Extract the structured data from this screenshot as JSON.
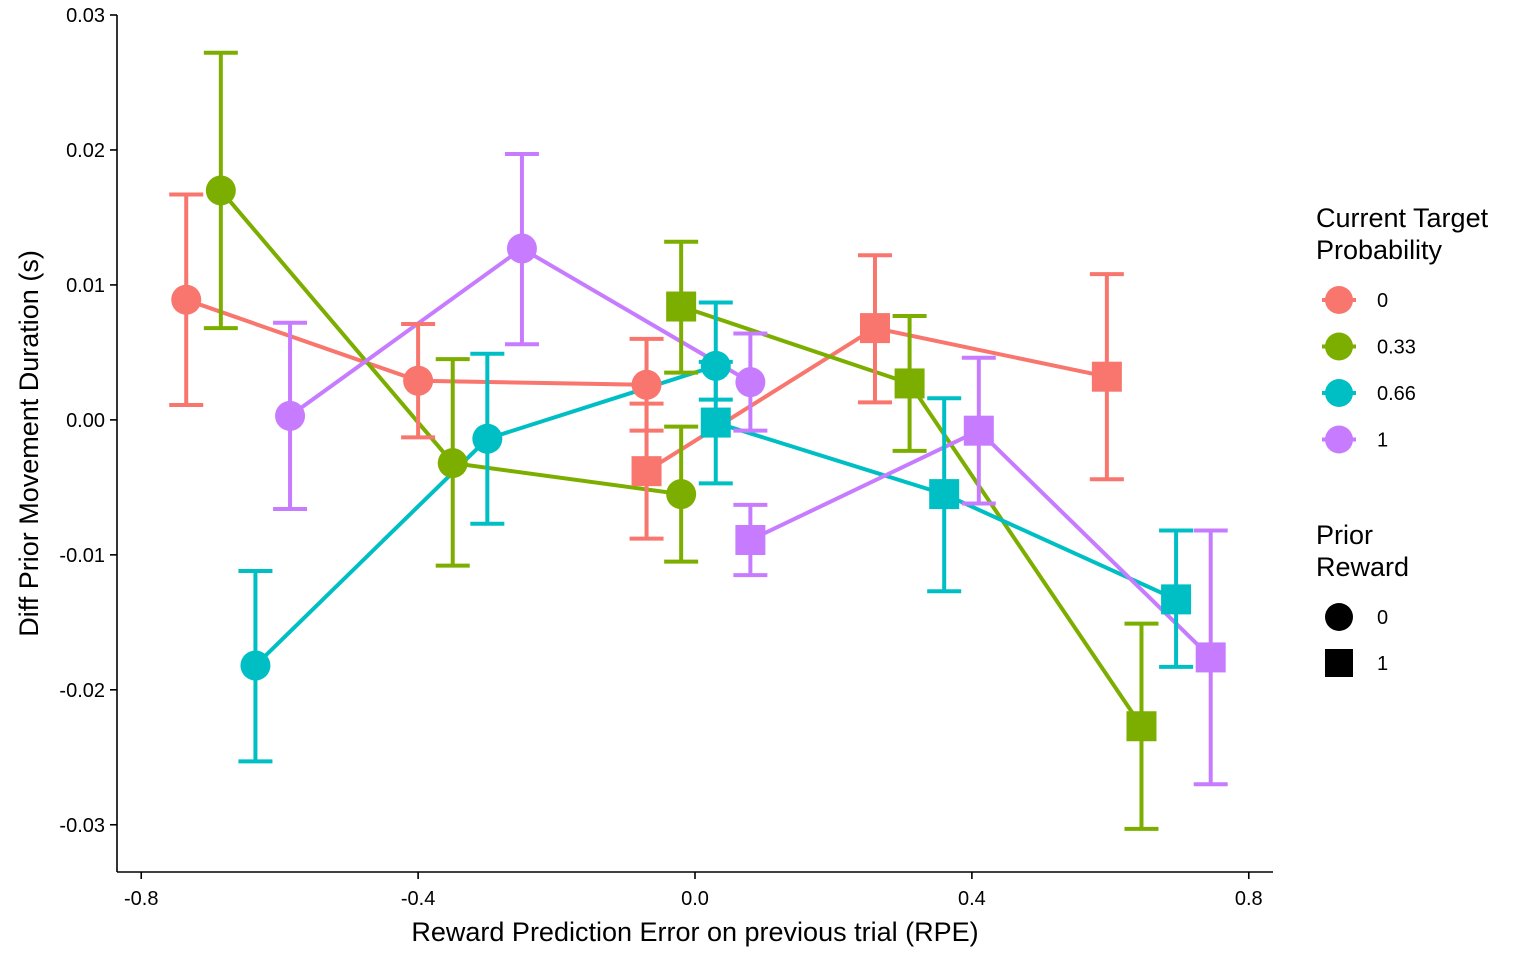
{
  "chart_data": {
    "type": "line",
    "title": "",
    "xlabel": "Reward Prediction Error on previous trial (RPE)",
    "ylabel": "Diff Prior Movement Duration (s)",
    "xlim": [
      -0.835,
      0.835
    ],
    "ylim": [
      -0.0335,
      0.03
    ],
    "x_ticks": [
      -0.8,
      -0.4,
      0.0,
      0.4,
      0.8
    ],
    "x_tick_labels": [
      "-0.8",
      "-0.4",
      "0.0",
      "0.4",
      "0.8"
    ],
    "y_ticks": [
      -0.03,
      -0.02,
      -0.01,
      0.0,
      0.01,
      0.02,
      0.03
    ],
    "y_tick_labels": [
      "-0.03",
      "-0.02",
      "-0.01",
      "0.00",
      "0.01",
      "0.02",
      "0.03"
    ],
    "grid": false,
    "legend_position": "right",
    "legend_color": {
      "title": [
        "Current Target",
        "Probability"
      ],
      "entries": [
        {
          "label": "0",
          "color": "#F8766D"
        },
        {
          "label": "0.33",
          "color": "#7CAE00"
        },
        {
          "label": "0.66",
          "color": "#00BFC4"
        },
        {
          "label": "1",
          "color": "#C77CFF"
        }
      ]
    },
    "legend_shape": {
      "title": [
        "Prior",
        "Reward"
      ],
      "entries": [
        {
          "label": "0",
          "shape": "circle"
        },
        {
          "label": "1",
          "shape": "square"
        }
      ]
    },
    "series": [
      {
        "color": "#F8766D",
        "points": [
          {
            "x": -0.735,
            "y": 0.0089,
            "lo": 0.0011,
            "hi": 0.0167,
            "prior_reward": 0
          },
          {
            "x": -0.4,
            "y": 0.0029,
            "lo": -0.0013,
            "hi": 0.0071,
            "prior_reward": 0
          },
          {
            "x": -0.07,
            "y": 0.0026,
            "lo": -0.0008,
            "hi": 0.006,
            "prior_reward": 0
          },
          {
            "x": -0.07,
            "y": -0.0038,
            "lo": -0.0088,
            "hi": 0.0012,
            "prior_reward": 1
          },
          {
            "x": 0.26,
            "y": 0.0068,
            "lo": 0.0013,
            "hi": 0.0122,
            "prior_reward": 1
          },
          {
            "x": 0.595,
            "y": 0.0032,
            "lo": -0.0044,
            "hi": 0.0108,
            "prior_reward": 1
          }
        ]
      },
      {
        "color": "#7CAE00",
        "points": [
          {
            "x": -0.685,
            "y": 0.017,
            "lo": 0.0068,
            "hi": 0.0272,
            "prior_reward": 0
          },
          {
            "x": -0.35,
            "y": -0.0032,
            "lo": -0.0108,
            "hi": 0.0045,
            "prior_reward": 0
          },
          {
            "x": -0.02,
            "y": -0.0055,
            "lo": -0.0105,
            "hi": -0.0005,
            "prior_reward": 0
          },
          {
            "x": -0.02,
            "y": 0.0084,
            "lo": 0.0035,
            "hi": 0.0132,
            "prior_reward": 1
          },
          {
            "x": 0.31,
            "y": 0.0027,
            "lo": -0.0023,
            "hi": 0.0077,
            "prior_reward": 1
          },
          {
            "x": 0.645,
            "y": -0.0227,
            "lo": -0.0303,
            "hi": -0.0151,
            "prior_reward": 1
          }
        ]
      },
      {
        "color": "#00BFC4",
        "points": [
          {
            "x": -0.635,
            "y": -0.0182,
            "lo": -0.0253,
            "hi": -0.0112,
            "prior_reward": 0
          },
          {
            "x": -0.3,
            "y": -0.0014,
            "lo": -0.0077,
            "hi": 0.0049,
            "prior_reward": 0
          },
          {
            "x": 0.03,
            "y": 0.004,
            "lo": 0.0015,
            "hi": 0.0087,
            "prior_reward": 0
          },
          {
            "x": 0.03,
            "y": -0.0002,
            "lo": -0.0047,
            "hi": 0.0043,
            "prior_reward": 1
          },
          {
            "x": 0.36,
            "y": -0.0055,
            "lo": -0.0127,
            "hi": 0.0016,
            "prior_reward": 1
          },
          {
            "x": 0.695,
            "y": -0.0133,
            "lo": -0.0183,
            "hi": -0.0082,
            "prior_reward": 1
          }
        ]
      },
      {
        "color": "#C77CFF",
        "points": [
          {
            "x": -0.585,
            "y": 0.0003,
            "lo": -0.0066,
            "hi": 0.0072,
            "prior_reward": 0
          },
          {
            "x": -0.25,
            "y": 0.0127,
            "lo": 0.0056,
            "hi": 0.0197,
            "prior_reward": 0
          },
          {
            "x": 0.08,
            "y": 0.0028,
            "lo": -0.0008,
            "hi": 0.0064,
            "prior_reward": 0
          },
          {
            "x": 0.08,
            "y": -0.0089,
            "lo": -0.0115,
            "hi": -0.0063,
            "prior_reward": 1
          },
          {
            "x": 0.41,
            "y": -0.0008,
            "lo": -0.0062,
            "hi": 0.0046,
            "prior_reward": 1
          },
          {
            "x": 0.745,
            "y": -0.0176,
            "lo": -0.027,
            "hi": -0.0082,
            "prior_reward": 1
          }
        ]
      }
    ]
  }
}
